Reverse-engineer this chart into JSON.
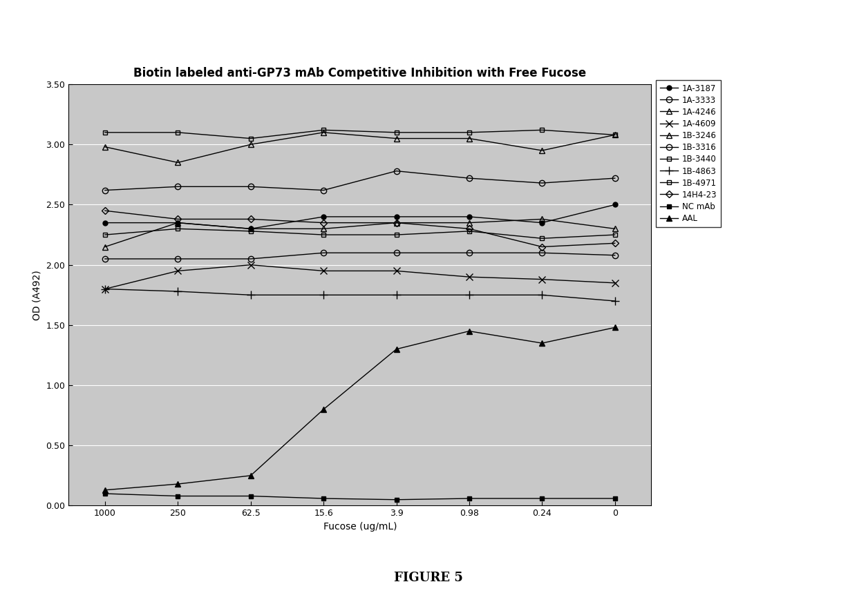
{
  "title": "Biotin labeled anti-GP73 mAb Competitive Inhibition with Free Fucose",
  "xlabel": "Fucose (ug/mL)",
  "ylabel": "OD (A492)",
  "x_labels": [
    "1000",
    "250",
    "62.5",
    "15.6",
    "3.9",
    "0.98",
    "0.24",
    "0"
  ],
  "x_positions": [
    0,
    1,
    2,
    3,
    4,
    5,
    6,
    7
  ],
  "ylim": [
    0.0,
    3.5
  ],
  "yticks": [
    0.0,
    0.5,
    1.0,
    1.5,
    2.0,
    2.5,
    3.0,
    3.5
  ],
  "figure_caption": "FIGURE 5",
  "series": [
    {
      "label": "1A-3187",
      "marker": "o",
      "fillstyle": "full",
      "markersize": 5,
      "values": [
        2.35,
        2.35,
        2.3,
        2.4,
        2.4,
        2.4,
        2.35,
        2.5
      ]
    },
    {
      "label": "1A-3333",
      "marker": "o",
      "fillstyle": "none",
      "markersize": 6,
      "values": [
        2.62,
        2.65,
        2.65,
        2.62,
        2.78,
        2.72,
        2.68,
        2.72
      ]
    },
    {
      "label": "1A-4246",
      "marker": "^",
      "fillstyle": "none",
      "markersize": 6,
      "values": [
        2.98,
        2.85,
        3.0,
        3.1,
        3.05,
        3.05,
        2.95,
        3.08
      ]
    },
    {
      "label": "1A-4609",
      "marker": "x",
      "fillstyle": "full",
      "markersize": 7,
      "values": [
        1.8,
        1.95,
        2.0,
        1.95,
        1.95,
        1.9,
        1.88,
        1.85
      ]
    },
    {
      "label": "1B-3246",
      "marker": "^",
      "fillstyle": "none",
      "markersize": 6,
      "values": [
        2.15,
        2.35,
        2.3,
        2.3,
        2.35,
        2.35,
        2.38,
        2.3
      ]
    },
    {
      "label": "1B-3316",
      "marker": "o",
      "fillstyle": "none",
      "markersize": 6,
      "values": [
        2.05,
        2.05,
        2.05,
        2.1,
        2.1,
        2.1,
        2.1,
        2.08
      ]
    },
    {
      "label": "1B-3440",
      "marker": "s",
      "fillstyle": "none",
      "markersize": 5,
      "values": [
        2.25,
        2.3,
        2.28,
        2.25,
        2.25,
        2.28,
        2.22,
        2.25
      ]
    },
    {
      "label": "1B-4863",
      "marker": "+",
      "fillstyle": "full",
      "markersize": 8,
      "values": [
        1.8,
        1.78,
        1.75,
        1.75,
        1.75,
        1.75,
        1.75,
        1.7
      ]
    },
    {
      "label": "1B-4971",
      "marker": "s",
      "fillstyle": "none",
      "markersize": 5,
      "values": [
        3.1,
        3.1,
        3.05,
        3.12,
        3.1,
        3.1,
        3.12,
        3.08
      ]
    },
    {
      "label": "14H4-23",
      "marker": "D",
      "fillstyle": "none",
      "markersize": 5,
      "values": [
        2.45,
        2.38,
        2.38,
        2.35,
        2.35,
        2.3,
        2.15,
        2.18
      ]
    },
    {
      "label": "NC mAb",
      "marker": "s",
      "fillstyle": "full",
      "markersize": 5,
      "values": [
        0.1,
        0.08,
        0.08,
        0.06,
        0.05,
        0.06,
        0.06,
        0.06
      ]
    },
    {
      "label": "AAL",
      "marker": "^",
      "fillstyle": "full",
      "markersize": 6,
      "values": [
        0.13,
        0.18,
        0.25,
        0.8,
        1.3,
        1.45,
        1.35,
        1.48
      ]
    }
  ],
  "plot_bg_color": "#c8c8c8",
  "line_color": "black",
  "grid_color": "white",
  "title_fontsize": 12,
  "axis_label_fontsize": 10,
  "tick_fontsize": 9,
  "legend_fontsize": 8.5,
  "caption_fontsize": 13,
  "outer_frame_color": "#c0c0c0",
  "outer_bg_color": "#f0f0f0"
}
